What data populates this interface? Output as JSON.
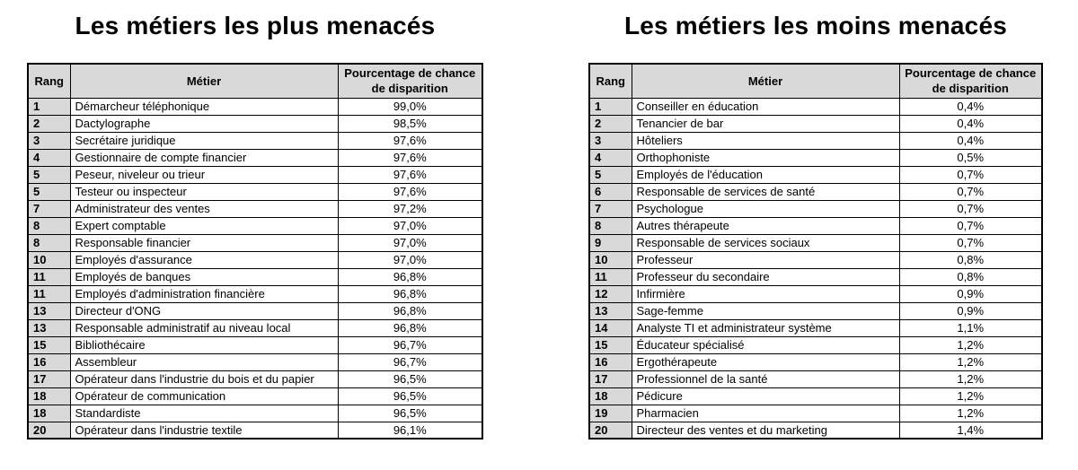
{
  "chart_data": [
    {
      "type": "table",
      "title": "Les métiers les plus menacés",
      "columns": [
        "Rang",
        "Métier",
        "Pourcentage de chance de disparition"
      ],
      "rows": [
        [
          "1",
          "Démarcheur téléphonique",
          "99,0%"
        ],
        [
          "2",
          "Dactylographe",
          "98,5%"
        ],
        [
          "3",
          "Secrétaire juridique",
          "97,6%"
        ],
        [
          "4",
          "Gestionnaire de compte financier",
          "97,6%"
        ],
        [
          "5",
          "Peseur, niveleur ou trieur",
          "97,6%"
        ],
        [
          "5",
          "Testeur ou inspecteur",
          "97,6%"
        ],
        [
          "7",
          "Administrateur des ventes",
          "97,2%"
        ],
        [
          "8",
          "Expert comptable",
          "97,0%"
        ],
        [
          "8",
          "Responsable financier",
          "97,0%"
        ],
        [
          "10",
          "Employés d'assurance",
          "97,0%"
        ],
        [
          "11",
          "Employés de banques",
          "96,8%"
        ],
        [
          "11",
          "Employés d'administration financière",
          "96,8%"
        ],
        [
          "13",
          "Directeur d'ONG",
          "96,8%"
        ],
        [
          "13",
          "Responsable administratif au niveau local",
          "96,8%"
        ],
        [
          "15",
          "Bibliothécaire",
          "96,7%"
        ],
        [
          "16",
          "Assembleur",
          "96,7%"
        ],
        [
          "17",
          "Opérateur dans l'industrie du bois et du papier",
          "96,5%"
        ],
        [
          "18",
          "Opérateur de communication",
          "96,5%"
        ],
        [
          "18",
          "Standardiste",
          "96,5%"
        ],
        [
          "20",
          "Opérateur dans l'industrie textile",
          "96,1%"
        ]
      ]
    },
    {
      "type": "table",
      "title": "Les métiers les moins menacés",
      "columns": [
        "Rang",
        "Métier",
        "Pourcentage de chance de disparition"
      ],
      "rows": [
        [
          "1",
          "Conseiller en éducation",
          "0,4%"
        ],
        [
          "2",
          "Tenancier de bar",
          "0,4%"
        ],
        [
          "3",
          "Hôteliers",
          "0,4%"
        ],
        [
          "4",
          "Orthophoniste",
          "0,5%"
        ],
        [
          "5",
          "Employés de l'éducation",
          "0,7%"
        ],
        [
          "6",
          "Responsable de services de santé",
          "0,7%"
        ],
        [
          "7",
          "Psychologue",
          "0,7%"
        ],
        [
          "8",
          "Autres thérapeute",
          "0,7%"
        ],
        [
          "9",
          "Responsable de services sociaux",
          "0,7%"
        ],
        [
          "10",
          "Professeur",
          "0,8%"
        ],
        [
          "11",
          "Professeur du secondaire",
          "0,8%"
        ],
        [
          "12",
          "Infirmière",
          "0,9%"
        ],
        [
          "13",
          "Sage-femme",
          "0,9%"
        ],
        [
          "14",
          "Analyste TI et administrateur système",
          "1,1%"
        ],
        [
          "15",
          "Éducateur spécialisé",
          "1,2%"
        ],
        [
          "16",
          "Ergothérapeute",
          "1,2%"
        ],
        [
          "17",
          "Professionnel de la santé",
          "1,2%"
        ],
        [
          "18",
          "Pédicure",
          "1,2%"
        ],
        [
          "19",
          "Pharmacien",
          "1,2%"
        ],
        [
          "20",
          "Directeur des ventes et du marketing",
          "1,4%"
        ]
      ]
    }
  ],
  "colors": {
    "header_background": "#d9d9d9",
    "rank_column_background": "#d9d9d9",
    "border": "#000000",
    "title_text": "#000000"
  }
}
